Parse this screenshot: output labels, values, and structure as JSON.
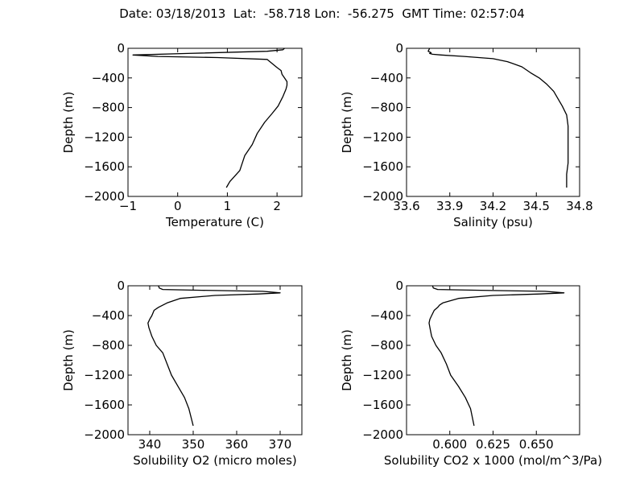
{
  "figure": {
    "title": "Date: 03/18/2013  Lat:  -58.718 Lon:  -56.275  GMT Time: 02:57:04"
  },
  "style": {
    "line_color": "#000000",
    "background": "#ffffff"
  },
  "chart_data": [
    {
      "type": "line",
      "xlabel": "Temperature (C)",
      "ylabel": "Depth (m)",
      "xlim": [
        -1,
        2.5
      ],
      "ylim": [
        -2000,
        0
      ],
      "xticks": [
        -1,
        0,
        1,
        2
      ],
      "xtick_labels": [
        "−1",
        "0",
        "1",
        "2"
      ],
      "yticks": [
        0,
        -400,
        -800,
        -1200,
        -1600,
        -2000
      ],
      "ytick_labels": [
        "0",
        "−400",
        "−800",
        "−1200",
        "−1600",
        "−2000"
      ],
      "grid": false,
      "series": [
        {
          "x": [
            2.15,
            2.12,
            1.8,
            0.2,
            -0.9,
            -0.4,
            0.8,
            1.8,
            2.0,
            2.08,
            2.1,
            2.15,
            2.2,
            2.2,
            2.18,
            2.12,
            2.02,
            1.9,
            1.75,
            1.6,
            1.5,
            1.35,
            1.25,
            1.05,
            0.98
          ],
          "y": [
            0,
            -20,
            -40,
            -70,
            -90,
            -110,
            -125,
            -150,
            -260,
            -300,
            -350,
            -400,
            -450,
            -500,
            -550,
            -650,
            -780,
            -880,
            -1000,
            -1150,
            -1300,
            -1450,
            -1650,
            -1800,
            -1880
          ]
        }
      ]
    },
    {
      "type": "line",
      "xlabel": "Salinity (psu)",
      "ylabel": "Depth (m)",
      "xlim": [
        33.6,
        34.8
      ],
      "ylim": [
        -2000,
        0
      ],
      "xticks": [
        33.6,
        33.9,
        34.2,
        34.5,
        34.8
      ],
      "xtick_labels": [
        "33.6",
        "33.9",
        "34.2",
        "34.5",
        "34.8"
      ],
      "yticks": [
        0,
        -400,
        -800,
        -1200,
        -1600,
        -2000
      ],
      "ytick_labels": [
        "0",
        "−400",
        "−800",
        "−1200",
        "−1600",
        "−2000"
      ],
      "grid": false,
      "series": [
        {
          "x": [
            33.76,
            33.75,
            33.77,
            33.76,
            33.78,
            33.84,
            34.0,
            34.2,
            34.3,
            34.4,
            34.46,
            34.52,
            34.57,
            34.62,
            34.65,
            34.68,
            34.71,
            34.72,
            34.72,
            34.72,
            34.71,
            34.71
          ],
          "y": [
            0,
            -40,
            -60,
            -70,
            -80,
            -90,
            -110,
            -140,
            -180,
            -250,
            -330,
            -400,
            -480,
            -580,
            -680,
            -780,
            -900,
            -1050,
            -1300,
            -1550,
            -1700,
            -1880
          ]
        }
      ]
    },
    {
      "type": "line",
      "xlabel": "Solubility O2 (micro moles)",
      "ylabel": "Depth (m)",
      "xlim": [
        335,
        375
      ],
      "ylim": [
        -2000,
        0
      ],
      "xticks": [
        340,
        350,
        360,
        370
      ],
      "xtick_labels": [
        "340",
        "350",
        "360",
        "370"
      ],
      "yticks": [
        0,
        -400,
        -800,
        -1200,
        -1600,
        -2000
      ],
      "ytick_labels": [
        "0",
        "−400",
        "−800",
        "−1200",
        "−1600",
        "−2000"
      ],
      "grid": false,
      "series": [
        {
          "x": [
            342,
            342.2,
            343,
            352,
            366,
            370,
            365,
            355,
            347,
            344,
            343,
            342,
            341,
            340.5,
            340,
            339.6,
            339.8,
            340.5,
            341.5,
            343,
            344,
            345,
            346.5,
            348,
            349,
            350
          ],
          "y": [
            0,
            -30,
            -50,
            -60,
            -75,
            -95,
            -110,
            -130,
            -170,
            -230,
            -260,
            -290,
            -330,
            -400,
            -450,
            -500,
            -560,
            -680,
            -800,
            -900,
            -1050,
            -1200,
            -1350,
            -1500,
            -1650,
            -1880
          ]
        }
      ]
    },
    {
      "type": "line",
      "xlabel": "Solubility CO2 x 1000 (mol/m^3/Pa)",
      "ylabel": "Depth (m)",
      "xlim": [
        0.575,
        0.675
      ],
      "ylim": [
        -2000,
        0
      ],
      "xticks": [
        0.6,
        0.625,
        0.65
      ],
      "xtick_labels": [
        "0.600",
        "0.625",
        "0.650"
      ],
      "yticks": [
        0,
        -400,
        -800,
        -1200,
        -1600,
        -2000
      ],
      "ytick_labels": [
        "0",
        "−400",
        "−800",
        "−1200",
        "−1600",
        "−2000"
      ],
      "grid": false,
      "series": [
        {
          "x": [
            0.59,
            0.5905,
            0.593,
            0.618,
            0.655,
            0.666,
            0.652,
            0.625,
            0.605,
            0.596,
            0.594,
            0.593,
            0.591,
            0.5895,
            0.5885,
            0.588,
            0.5885,
            0.5895,
            0.592,
            0.595,
            0.598,
            0.6005,
            0.605,
            0.609,
            0.612,
            0.614
          ],
          "y": [
            0,
            -30,
            -50,
            -60,
            -75,
            -95,
            -110,
            -130,
            -170,
            -230,
            -260,
            -290,
            -330,
            -400,
            -450,
            -500,
            -560,
            -680,
            -800,
            -900,
            -1050,
            -1200,
            -1350,
            -1500,
            -1650,
            -1880
          ]
        }
      ]
    }
  ]
}
